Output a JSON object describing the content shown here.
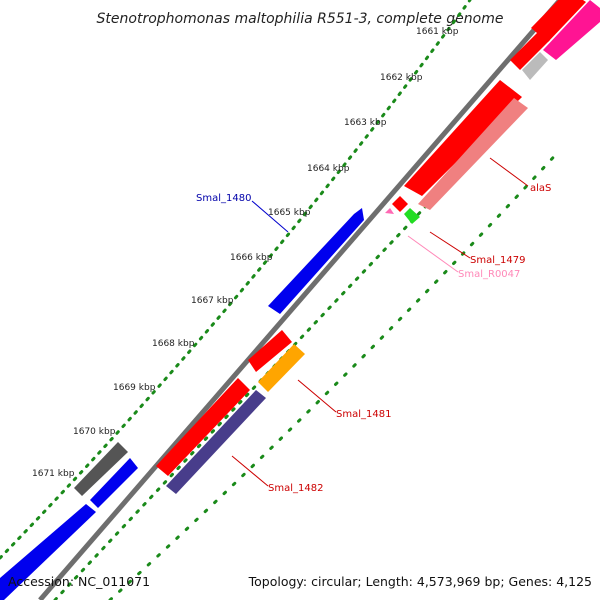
{
  "title": "Stenotrophomonas maltophilia R551-3, complete genome",
  "footer": {
    "accession": "Accession: NC_011071",
    "summary": "Topology: circular; Length: 4,573,969 bp; Genes: 4,125"
  },
  "ticks": [
    "1661 kbp",
    "1662 kbp",
    "1663 kbp",
    "1664 kbp",
    "1665 kbp",
    "1666 kbp",
    "1667 kbp",
    "1668 kbp",
    "1669 kbp",
    "1670 kbp",
    "1671 kbp"
  ],
  "gene_labels": {
    "alaS": "alaS",
    "smal_1480": "Smal_1480",
    "smal_1479": "Smal_1479",
    "smal_r0047": "Smal_R0047",
    "smal_1481": "Smal_1481",
    "smal_1482": "Smal_1482"
  },
  "colors": {
    "forward_cds": "#ff0000",
    "forward_light": "#f08080",
    "reverse_cds": "#0000ee",
    "rrna": "#ff69b4",
    "trna": "#22dd22",
    "other": "#555555",
    "orange_feature": "#ffa500",
    "purple_feature": "#483d8b",
    "backbone": "#808080",
    "gc_marks": "#1a8a1a"
  }
}
